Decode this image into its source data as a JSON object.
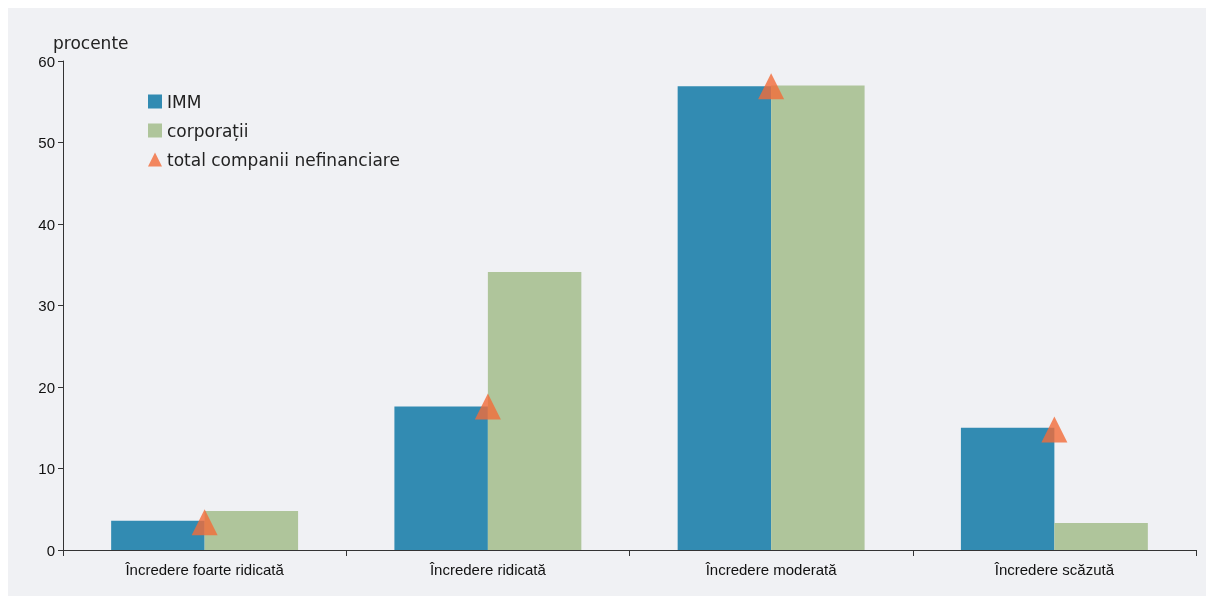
{
  "chart_data": {
    "type": "bar",
    "ylabel": "procente",
    "categories": [
      "Încredere foarte ridicată",
      "Încredere ridicată",
      "Încredere moderată",
      "Încredere scăzută"
    ],
    "series": [
      {
        "name": "IMM",
        "color": "#328bb2",
        "values": [
          3.6,
          17.6,
          56.9,
          15.0
        ]
      },
      {
        "name": "corporații",
        "color": "#afc59b",
        "values": [
          4.8,
          34.1,
          57.0,
          3.3
        ]
      },
      {
        "name": "total companii nefinanciare",
        "type": "scatter",
        "color": "#f26b38",
        "x": [
          "Încredere foarte ridicată",
          "Încredere ridicată",
          "Încredere moderată",
          "Încredere scăzută"
        ],
        "values": [
          3.4,
          17.6,
          56.9,
          14.8
        ]
      }
    ],
    "ylim": [
      0,
      60
    ],
    "yticks": [
      0,
      10,
      20,
      30,
      40,
      50,
      60
    ],
    "grid": false,
    "legend": "top left",
    "marker": "triangle"
  }
}
